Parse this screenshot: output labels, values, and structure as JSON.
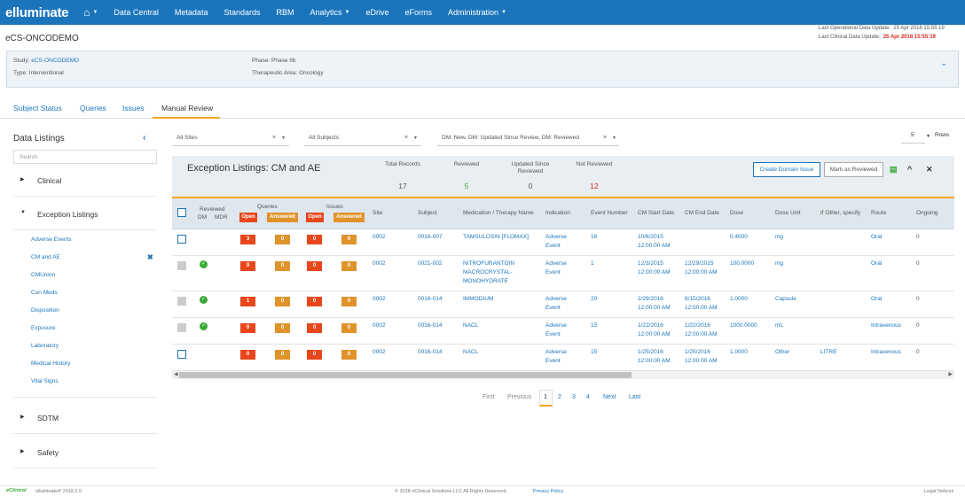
{
  "nav": {
    "logo": "elluminate",
    "items": [
      {
        "label": "Data Central",
        "caret": false
      },
      {
        "label": "Metadata",
        "caret": false
      },
      {
        "label": "Standards",
        "caret": false
      },
      {
        "label": "RBM",
        "caret": false
      },
      {
        "label": "Analytics",
        "caret": true
      },
      {
        "label": "eDrive",
        "caret": false
      },
      {
        "label": "eForms",
        "caret": false
      },
      {
        "label": "Administration",
        "caret": true
      }
    ]
  },
  "page_title": "eCS-ONCODEMO",
  "updates": {
    "operational_label": "Last Operational Data Update:",
    "operational_value": "25 Apr 2018 15:55:19",
    "clinical_label": "Last Clinical Data Update:",
    "clinical_value": "25 Apr 2018 15:55:19"
  },
  "study": {
    "study_label": "Study:",
    "study_value": "eCS-ONCODEMO",
    "type": "Type: Interventional",
    "phase": "Phase: Phase IIb",
    "therapeutic_area": "Therapeutic Area: Oncology"
  },
  "tabs": [
    "Subject Status",
    "Queries",
    "Issues",
    "Manual Review"
  ],
  "sidebar": {
    "title": "Data Listings",
    "search_placeholder": "Search",
    "sections": {
      "clinical": "Clinical",
      "exception": "Exception Listings",
      "sdtm": "SDTM",
      "safety": "Safety"
    },
    "items": [
      "Adverse Events",
      "CM and AE",
      "CMUnion",
      "Con Meds",
      "Disposition",
      "Exposure",
      "Laboratory",
      "Medical History",
      "Vital Signs"
    ]
  },
  "filters": {
    "sites": "All Sites",
    "subjects": "All Subjects",
    "dm": "DM: New,  DM: Updated Since Review,  DM: Reviewed",
    "rows_value": "5",
    "rows_label": "Rows"
  },
  "panel": {
    "title": "Exception Listings: CM and AE",
    "stats": {
      "total_label": "Total Records",
      "total": "17",
      "reviewed_label": "Reviewed",
      "reviewed": "5",
      "updated_label": "Updated Since Reviewed",
      "updated": "0",
      "not_reviewed_label": "Not Reviewed",
      "not_reviewed": "12"
    },
    "create_issue": "Create Domain Issue",
    "mark_reviewed": "Mark as Reviewed"
  },
  "table": {
    "headers": {
      "reviewed": "Reviewed",
      "dm": "DM",
      "mdr": "MDR",
      "queries": "Queries",
      "issues": "Issues",
      "open": "Open",
      "answered": "Answered",
      "site": "Site",
      "subject": "Subject",
      "medication": "Medication / Therapy Name",
      "indication": "Indication",
      "event_number": "Event Number",
      "cm_start": "CM Start Date",
      "cm_end": "CM End Date",
      "dose": "Dose",
      "dose_unit": "Dose Unit",
      "if_other": "If Other, specify",
      "route": "Route",
      "ongoing": "Ongoing"
    },
    "rows": [
      {
        "reviewed": false,
        "q_open": "3",
        "q_ans": "0",
        "i_open": "0",
        "i_ans": "0",
        "site": "0002",
        "subject": "0016-007",
        "med": [
          "TAMSULOSIN [FLOMAX]"
        ],
        "indication": [
          "Adverse",
          "Event"
        ],
        "event": "16",
        "start": [
          "10/6/2015",
          "12:00:00 AM"
        ],
        "end": [],
        "dose": "0.4000",
        "unit": "mg",
        "other": "",
        "route": "Oral",
        "ongoing": "0"
      },
      {
        "reviewed": true,
        "q_open": "0",
        "q_ans": "0",
        "i_open": "0",
        "i_ans": "0",
        "site": "0002",
        "subject": "0021-002",
        "med": [
          "NITROFURANTOIN",
          "MACROCRYSTAL-",
          "MONOHYDRATE"
        ],
        "indication": [
          "Adverse",
          "Event"
        ],
        "event": "1",
        "start": [
          "12/3/2015",
          "12:00:00 AM"
        ],
        "end": [
          "12/29/2015",
          "12:00:00 AM"
        ],
        "dose": "100.0000",
        "unit": "mg",
        "other": "",
        "route": "Oral",
        "ongoing": "0"
      },
      {
        "reviewed": true,
        "q_open": "1",
        "q_ans": "0",
        "i_open": "0",
        "i_ans": "0",
        "site": "0002",
        "subject": "0016-014",
        "med": [
          "IMMODIUM"
        ],
        "indication": [
          "Adverse",
          "Event"
        ],
        "event": "20",
        "start": [
          "2/29/2016",
          "12:00:00 AM"
        ],
        "end": [
          "6/15/2016",
          "12:00:00 AM"
        ],
        "dose": "1.0000",
        "unit": "Capsule",
        "other": "",
        "route": "Oral",
        "ongoing": "0"
      },
      {
        "reviewed": true,
        "q_open": "0",
        "q_ans": "0",
        "i_open": "0",
        "i_ans": "0",
        "site": "0002",
        "subject": "0016-014",
        "med": [
          "NACL"
        ],
        "indication": [
          "Adverse",
          "Event"
        ],
        "event": "15",
        "start": [
          "1/22/2016",
          "12:00:00 AM"
        ],
        "end": [
          "1/22/2016",
          "12:00:00 AM"
        ],
        "dose": "1000.0000",
        "unit": "mL",
        "other": "",
        "route": "Intravenous",
        "ongoing": "0"
      },
      {
        "reviewed": false,
        "q_open": "0",
        "q_ans": "0",
        "i_open": "0",
        "i_ans": "0",
        "site": "0002",
        "subject": "0016-014",
        "med": [
          "NACL"
        ],
        "indication": [
          "Adverse",
          "Event"
        ],
        "event": "15",
        "start": [
          "1/25/2016",
          "12:00:00 AM"
        ],
        "end": [
          "1/25/2016",
          "12:00:00 AM"
        ],
        "dose": "1.0000",
        "unit": "Other",
        "other": "LITRE",
        "route": "Intravenous",
        "ongoing": "0"
      }
    ]
  },
  "pagination": {
    "first": "First",
    "previous": "Previous",
    "pages": [
      "1",
      "2",
      "3",
      "4"
    ],
    "next": "Next",
    "last": "Last"
  },
  "footer": {
    "brand": "eClinical",
    "version": "elluminate® 2018.2.0",
    "copyright": "© 2018 eClinical Solutions LLC  All Rights Reserved.",
    "privacy": "Privacy Policy",
    "legal": "Legal Notices"
  },
  "colors": {
    "nav": "#1b75bc",
    "accent": "#f5a623",
    "open": "#e8461c",
    "answered": "#e0932b",
    "reviewed_check": "#3aa935"
  }
}
